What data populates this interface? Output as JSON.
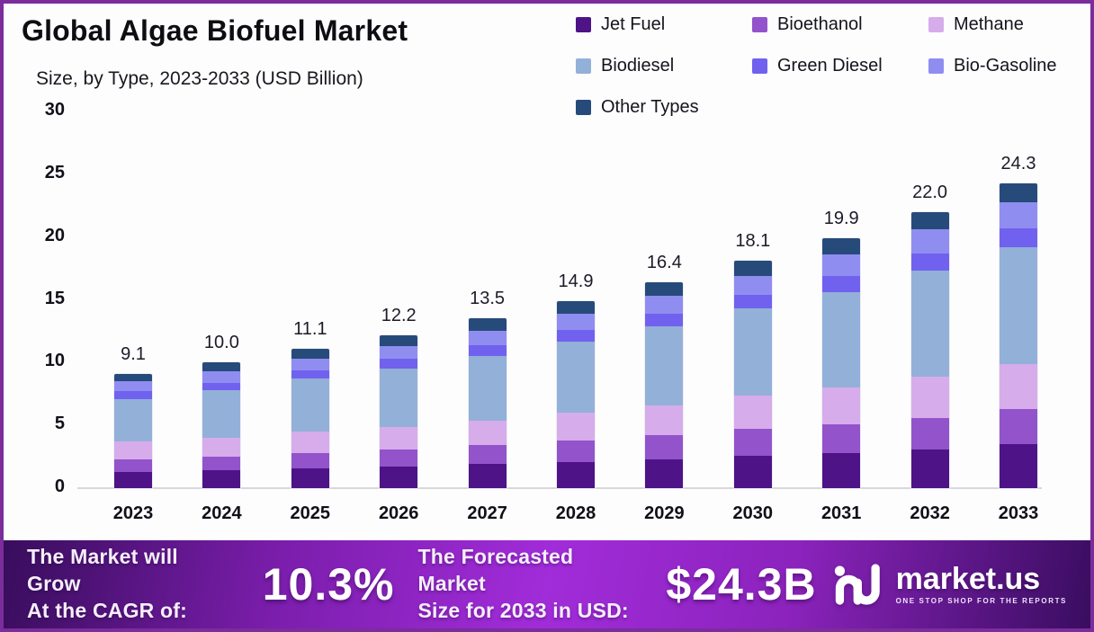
{
  "title": "Global Algae Biofuel Market",
  "subtitle": "Size, by Type, 2023-2033 (USD Billion)",
  "colors": {
    "frame_border": "#7b2d9b",
    "background": "#fdfdfe",
    "baseline": "#d7d7dc",
    "axis_text": "#101018",
    "value_text": "#1b1b28"
  },
  "chart_data": {
    "type": "bar",
    "stacked": true,
    "title": "Global Algae Biofuel Market Size, by Type, 2023-2033 (USD Billion)",
    "x": [
      "2023",
      "2024",
      "2025",
      "2026",
      "2027",
      "2028",
      "2029",
      "2030",
      "2031",
      "2032",
      "2033"
    ],
    "series": [
      {
        "name": "Jet Fuel",
        "color": "#4e1387",
        "values": [
          1.3,
          1.4,
          1.6,
          1.7,
          1.9,
          2.1,
          2.3,
          2.6,
          2.8,
          3.1,
          3.5
        ]
      },
      {
        "name": "Bioethanol",
        "color": "#9253cb",
        "values": [
          1.0,
          1.1,
          1.2,
          1.4,
          1.5,
          1.7,
          1.9,
          2.1,
          2.3,
          2.5,
          2.8
        ]
      },
      {
        "name": "Methane",
        "color": "#d6aceb",
        "values": [
          1.4,
          1.5,
          1.7,
          1.8,
          2.0,
          2.2,
          2.4,
          2.7,
          2.9,
          3.3,
          3.6
        ]
      },
      {
        "name": "Biodiesel",
        "color": "#93b0d8",
        "values": [
          3.4,
          3.8,
          4.2,
          4.6,
          5.1,
          5.7,
          6.3,
          6.9,
          7.6,
          8.4,
          9.3
        ]
      },
      {
        "name": "Green Diesel",
        "color": "#7161ef",
        "values": [
          0.6,
          0.6,
          0.7,
          0.8,
          0.9,
          0.9,
          1.0,
          1.1,
          1.3,
          1.4,
          1.5
        ]
      },
      {
        "name": "Bio-Gasoline",
        "color": "#908df1",
        "values": [
          0.8,
          0.9,
          0.9,
          1.0,
          1.1,
          1.3,
          1.4,
          1.5,
          1.7,
          1.9,
          2.1
        ]
      },
      {
        "name": "Other Types",
        "color": "#264b7a",
        "values": [
          0.6,
          0.7,
          0.8,
          0.9,
          1.0,
          1.0,
          1.1,
          1.2,
          1.3,
          1.4,
          1.5
        ]
      }
    ],
    "totals_labels": [
      "9.1",
      "10.0",
      "11.1",
      "12.2",
      "13.5",
      "14.9",
      "16.4",
      "18.1",
      "19.9",
      "22.0",
      "24.3"
    ],
    "yticks": [
      "30",
      "25",
      "20",
      "15",
      "10",
      "5",
      "0"
    ],
    "ylim": [
      0,
      30
    ],
    "grid": false,
    "legend_position": "top-right"
  },
  "banner": {
    "cagr_label_line1": "The Market will Grow",
    "cagr_label_line2": "At the CAGR of:",
    "cagr_value": "10.3%",
    "forecast_label_line1": "The Forecasted Market",
    "forecast_label_line2": "Size for 2033 in USD:",
    "forecast_value": "$24.3B",
    "logo_text": "market.us",
    "logo_tagline": "ONE STOP SHOP FOR THE REPORTS"
  }
}
